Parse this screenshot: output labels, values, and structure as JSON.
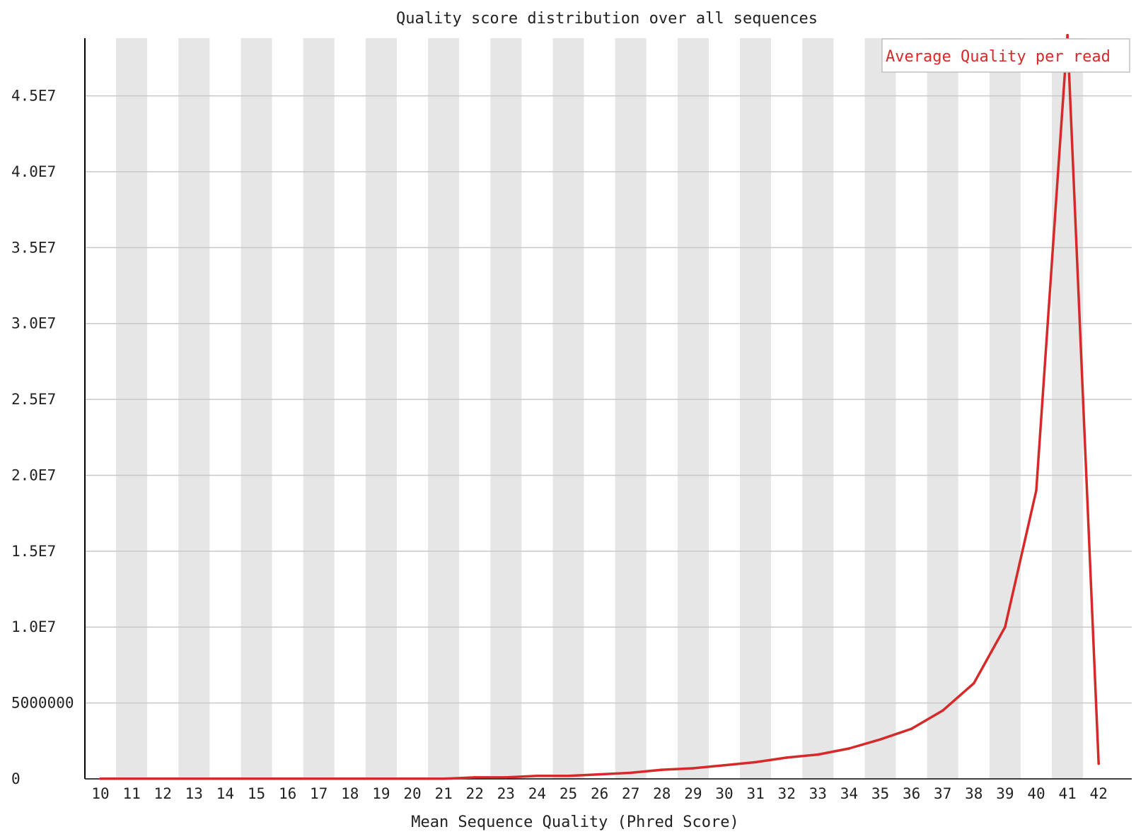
{
  "chart_data": {
    "type": "line",
    "title": "Quality score distribution over all sequences",
    "xlabel": "Mean Sequence Quality (Phred Score)",
    "ylabel": "",
    "grid": true,
    "legend_position": "top-right",
    "ylim": [
      0,
      48800000
    ],
    "y_ticks": [
      0,
      5000000,
      10000000,
      15000000,
      20000000,
      25000000,
      30000000,
      35000000,
      40000000,
      45000000
    ],
    "y_tick_labels": [
      "0",
      "5000000",
      "1.0E7",
      "1.5E7",
      "2.0E7",
      "2.5E7",
      "3.0E7",
      "3.5E7",
      "4.0E7",
      "4.5E7"
    ],
    "x": [
      "10",
      "11",
      "12",
      "13",
      "14",
      "15",
      "16",
      "17",
      "18",
      "19",
      "20",
      "21",
      "22",
      "23",
      "24",
      "25",
      "26",
      "27",
      "28",
      "29",
      "30",
      "31",
      "32",
      "33",
      "34",
      "35",
      "36",
      "37",
      "38",
      "39",
      "40",
      "41",
      "42"
    ],
    "series": [
      {
        "name": "Average Quality per read",
        "color": "#d62a2a",
        "values": [
          10000,
          10000,
          10000,
          10000,
          10000,
          10000,
          10000,
          10000,
          10000,
          10000,
          10000,
          10000,
          100000,
          100000,
          200000,
          200000,
          300000,
          400000,
          600000,
          700000,
          900000,
          1100000,
          1400000,
          1600000,
          2000000,
          2600000,
          3300000,
          4500000,
          6300000,
          10000000,
          19000000,
          49000000,
          1000000
        ]
      }
    ],
    "band_color": "#e6e6e6",
    "gridline_color": "#c8c8c8"
  }
}
